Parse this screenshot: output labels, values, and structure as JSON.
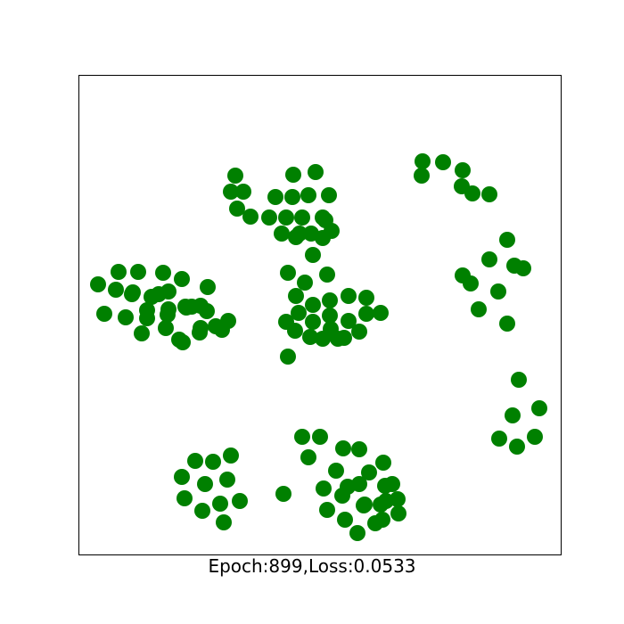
{
  "chart_data": {
    "type": "scatter",
    "title": "",
    "xlabel": "Epoch:899,Loss:0.0533",
    "ylabel": "",
    "xlim": [
      0,
      540
    ],
    "ylim": [
      0,
      538
    ],
    "grid": false,
    "legend": "none",
    "marker_color": "#008000",
    "x_ticks_visible": false,
    "y_ticks_visible": false,
    "points": [
      [
        240,
        427
      ],
      [
        265,
        430
      ],
      [
        220,
        402
      ],
      [
        239,
        402
      ],
      [
        257,
        404
      ],
      [
        280,
        404
      ],
      [
        213,
        379
      ],
      [
        232,
        379
      ],
      [
        250,
        379
      ],
      [
        273,
        379
      ],
      [
        227,
        361
      ],
      [
        247,
        361
      ],
      [
        273,
        356
      ],
      [
        175,
        426
      ],
      [
        170,
        408
      ],
      [
        184,
        408
      ],
      [
        177,
        389
      ],
      [
        192,
        380
      ],
      [
        408,
        441
      ],
      [
        385,
        442
      ],
      [
        384,
        426
      ],
      [
        430,
        432
      ],
      [
        429,
        414
      ],
      [
        460,
        405
      ],
      [
        441,
        406
      ],
      [
        480,
        354
      ],
      [
        488,
        325
      ],
      [
        460,
        332
      ],
      [
        430,
        314
      ],
      [
        498,
        322
      ],
      [
        470,
        296
      ],
      [
        439,
        305
      ],
      [
        448,
        276
      ],
      [
        480,
        260
      ],
      [
        276,
        376
      ],
      [
        260,
        361
      ],
      [
        243,
        357
      ],
      [
        283,
        364
      ],
      [
        262,
        337
      ],
      [
        278,
        315
      ],
      [
        234,
        317
      ],
      [
        253,
        306
      ],
      [
        243,
        291
      ],
      [
        262,
        281
      ],
      [
        281,
        286
      ],
      [
        302,
        291
      ],
      [
        322,
        289
      ],
      [
        322,
        271
      ],
      [
        302,
        263
      ],
      [
        281,
        269
      ],
      [
        314,
        251
      ],
      [
        297,
        244
      ],
      [
        282,
        254
      ],
      [
        262,
        262
      ],
      [
        246,
        272
      ],
      [
        242,
        252
      ],
      [
        232,
        262
      ],
      [
        259,
        245
      ],
      [
        273,
        243
      ],
      [
        234,
        223
      ],
      [
        290,
        243
      ],
      [
        338,
        272
      ],
      [
        44,
        318
      ],
      [
        21,
        304
      ],
      [
        41,
        298
      ],
      [
        66,
        318
      ],
      [
        94,
        317
      ],
      [
        115,
        310
      ],
      [
        100,
        296
      ],
      [
        120,
        278
      ],
      [
        144,
        301
      ],
      [
        136,
        280
      ],
      [
        153,
        257
      ],
      [
        136,
        255
      ],
      [
        116,
        239
      ],
      [
        89,
        293
      ],
      [
        81,
        290
      ],
      [
        100,
        276
      ],
      [
        119,
        279
      ],
      [
        99,
        270
      ],
      [
        76,
        275
      ],
      [
        59,
        293
      ],
      [
        60,
        295
      ],
      [
        28,
        271
      ],
      [
        52,
        267
      ],
      [
        76,
        266
      ],
      [
        97,
        255
      ],
      [
        70,
        249
      ],
      [
        112,
        242
      ],
      [
        135,
        250
      ],
      [
        160,
        253
      ],
      [
        167,
        263
      ],
      [
        126,
        279
      ],
      [
        143,
        274
      ],
      [
        493,
        197
      ],
      [
        486,
        157
      ],
      [
        516,
        165
      ],
      [
        471,
        131
      ],
      [
        491,
        122
      ],
      [
        511,
        133
      ],
      [
        250,
        133
      ],
      [
        270,
        133
      ],
      [
        257,
        110
      ],
      [
        296,
        120
      ],
      [
        314,
        119
      ],
      [
        341,
        104
      ],
      [
        288,
        95
      ],
      [
        301,
        77
      ],
      [
        325,
        93
      ],
      [
        351,
        80
      ],
      [
        319,
        56
      ],
      [
        343,
        78
      ],
      [
        314,
        80
      ],
      [
        295,
        67
      ],
      [
        274,
        75
      ],
      [
        278,
        51
      ],
      [
        298,
        40
      ],
      [
        320,
        57
      ],
      [
        340,
        40
      ],
      [
        344,
        61
      ],
      [
        357,
        63
      ],
      [
        358,
        47
      ],
      [
        332,
        36
      ],
      [
        312,
        25
      ],
      [
        338,
        57
      ],
      [
        130,
        106
      ],
      [
        150,
        105
      ],
      [
        170,
        112
      ],
      [
        115,
        88
      ],
      [
        141,
        80
      ],
      [
        166,
        85
      ],
      [
        118,
        64
      ],
      [
        138,
        50
      ],
      [
        158,
        58
      ],
      [
        180,
        61
      ],
      [
        162,
        37
      ],
      [
        229,
        69
      ]
    ]
  }
}
